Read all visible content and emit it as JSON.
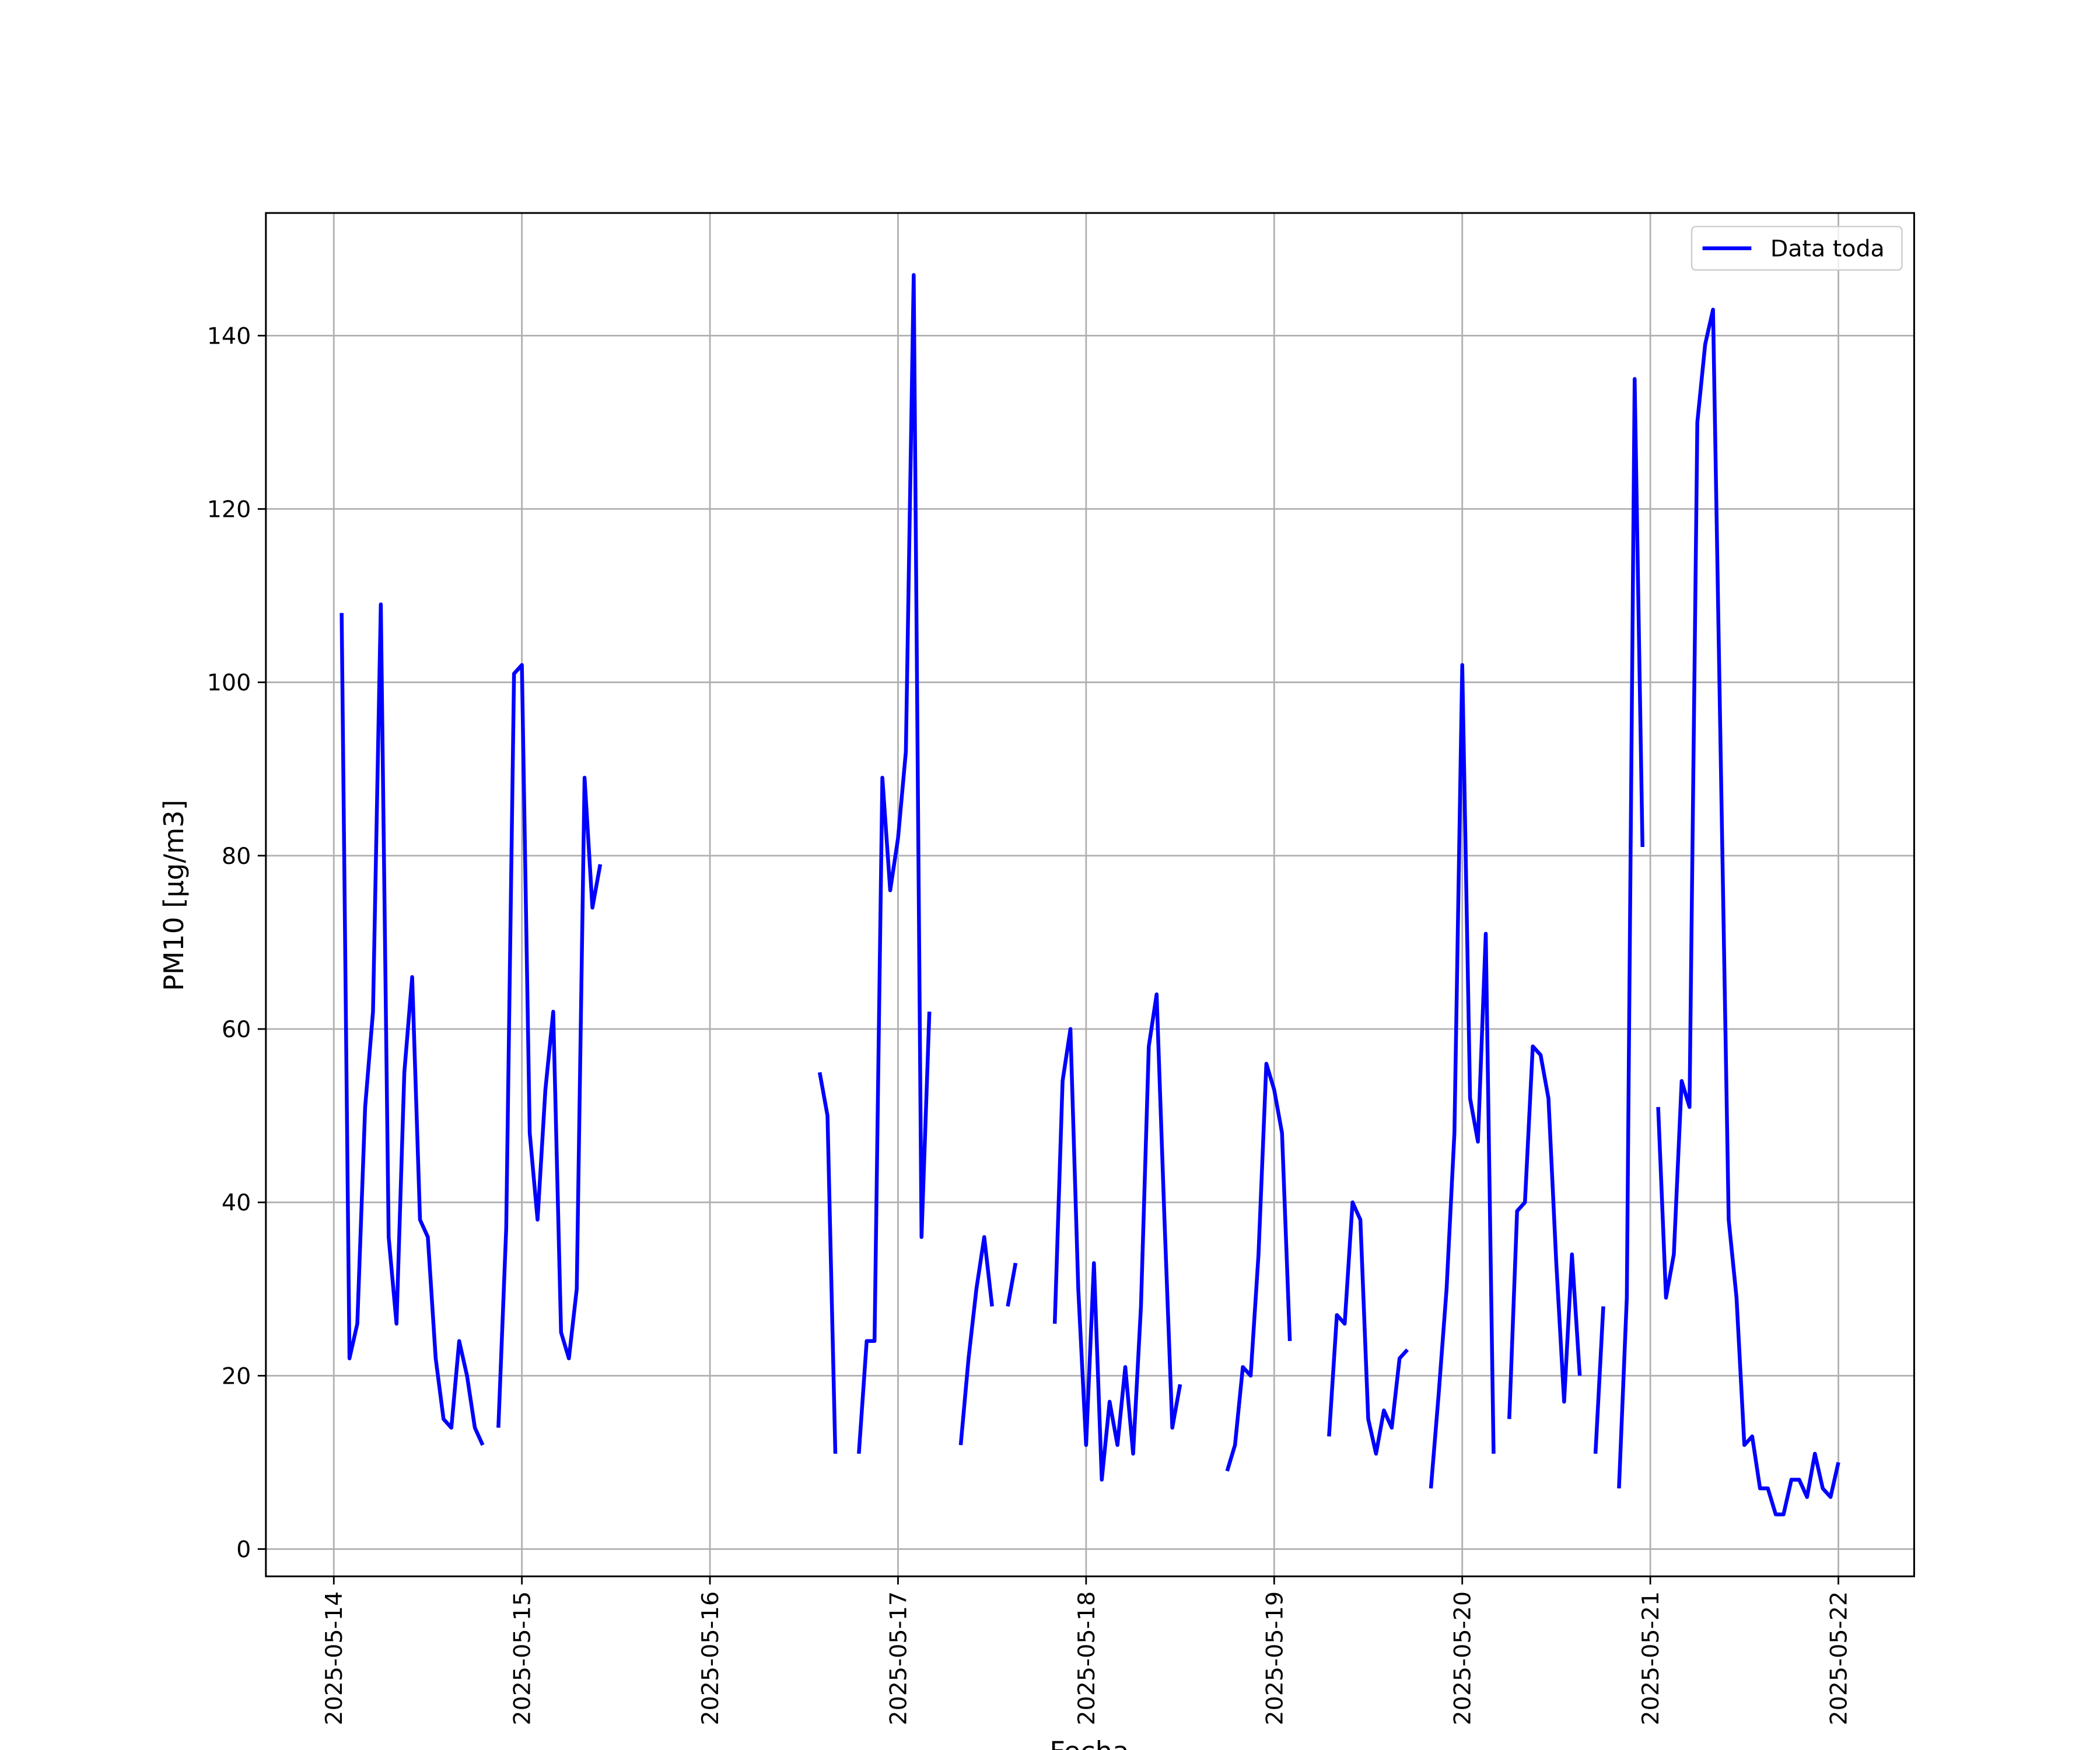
{
  "chart_data": {
    "type": "line",
    "xlabel": "Fecha",
    "ylabel": "PM10 [μg/m3]",
    "x": [
      "2025-05-14T01:00",
      "2025-05-14T02:00",
      "2025-05-14T03:00",
      "2025-05-14T04:00",
      "2025-05-14T05:00",
      "2025-05-14T06:00",
      "2025-05-14T07:00",
      "2025-05-14T08:00",
      "2025-05-14T09:00",
      "2025-05-14T10:00",
      "2025-05-14T11:00",
      "2025-05-14T12:00",
      "2025-05-14T13:00",
      "2025-05-14T14:00",
      "2025-05-14T15:00",
      "2025-05-14T16:00",
      "2025-05-14T17:00",
      "2025-05-14T18:00",
      "2025-05-14T19:00",
      "2025-05-14T20:00",
      "2025-05-14T21:00",
      "2025-05-14T22:00",
      "2025-05-14T23:00",
      "2025-05-15T00:00",
      "2025-05-15T01:00",
      "2025-05-15T02:00",
      "2025-05-15T03:00",
      "2025-05-15T04:00",
      "2025-05-15T05:00",
      "2025-05-15T06:00",
      "2025-05-15T07:00",
      "2025-05-15T08:00",
      "2025-05-15T09:00",
      "2025-05-15T10:00",
      "2025-05-15T11:00",
      "2025-05-16T14:00",
      "2025-05-16T15:00",
      "2025-05-16T16:00",
      "2025-05-16T17:00",
      "2025-05-16T19:00",
      "2025-05-16T20:00",
      "2025-05-16T21:00",
      "2025-05-16T22:00",
      "2025-05-16T23:00",
      "2025-05-17T00:00",
      "2025-05-17T01:00",
      "2025-05-17T02:00",
      "2025-05-17T03:00",
      "2025-05-17T04:00",
      "2025-05-17T05:00",
      "2025-05-17T08:00",
      "2025-05-17T09:00",
      "2025-05-17T10:00",
      "2025-05-17T11:00",
      "2025-05-17T12:00",
      "2025-05-17T13:00",
      "2025-05-17T14:00",
      "2025-05-17T15:00",
      "2025-05-17T16:00",
      "2025-05-17T20:00",
      "2025-05-17T21:00",
      "2025-05-17T22:00",
      "2025-05-17T23:00",
      "2025-05-18T00:00",
      "2025-05-18T01:00",
      "2025-05-18T02:00",
      "2025-05-18T03:00",
      "2025-05-18T04:00",
      "2025-05-18T05:00",
      "2025-05-18T06:00",
      "2025-05-18T07:00",
      "2025-05-18T08:00",
      "2025-05-18T09:00",
      "2025-05-18T10:00",
      "2025-05-18T11:00",
      "2025-05-18T12:00",
      "2025-05-18T13:00",
      "2025-05-18T18:00",
      "2025-05-18T19:00",
      "2025-05-18T20:00",
      "2025-05-18T21:00",
      "2025-05-18T22:00",
      "2025-05-18T23:00",
      "2025-05-19T00:00",
      "2025-05-19T01:00",
      "2025-05-19T02:00",
      "2025-05-19T03:00",
      "2025-05-19T07:00",
      "2025-05-19T08:00",
      "2025-05-19T09:00",
      "2025-05-19T10:00",
      "2025-05-19T11:00",
      "2025-05-19T12:00",
      "2025-05-19T13:00",
      "2025-05-19T14:00",
      "2025-05-19T15:00",
      "2025-05-19T16:00",
      "2025-05-19T17:00",
      "2025-05-19T18:00",
      "2025-05-19T20:00",
      "2025-05-19T21:00",
      "2025-05-19T22:00",
      "2025-05-19T23:00",
      "2025-05-20T00:00",
      "2025-05-20T01:00",
      "2025-05-20T02:00",
      "2025-05-20T03:00",
      "2025-05-20T04:00",
      "2025-05-20T05:00",
      "2025-05-20T06:00",
      "2025-05-20T07:00",
      "2025-05-20T08:00",
      "2025-05-20T09:00",
      "2025-05-20T10:00",
      "2025-05-20T11:00",
      "2025-05-20T12:00",
      "2025-05-20T13:00",
      "2025-05-20T14:00",
      "2025-05-20T15:00",
      "2025-05-20T16:00",
      "2025-05-20T17:00",
      "2025-05-20T18:00",
      "2025-05-20T19:00",
      "2025-05-20T20:00",
      "2025-05-20T21:00",
      "2025-05-20T22:00",
      "2025-05-20T23:00",
      "2025-05-21T00:00",
      "2025-05-21T01:00",
      "2025-05-21T02:00",
      "2025-05-21T03:00",
      "2025-05-21T04:00",
      "2025-05-21T05:00",
      "2025-05-21T06:00",
      "2025-05-21T07:00",
      "2025-05-21T08:00",
      "2025-05-21T10:00",
      "2025-05-21T11:00",
      "2025-05-21T12:00",
      "2025-05-21T13:00",
      "2025-05-21T14:00",
      "2025-05-21T15:00",
      "2025-05-21T16:00",
      "2025-05-21T17:00",
      "2025-05-21T18:00",
      "2025-05-21T19:00",
      "2025-05-21T20:00",
      "2025-05-21T21:00",
      "2025-05-21T22:00",
      "2025-05-21T23:00",
      "2025-05-22T00:00"
    ],
    "series": [
      {
        "name": "Data toda",
        "color": "#0000ff",
        "values": [
          108,
          22,
          26,
          51,
          62,
          109,
          36,
          26,
          55,
          66,
          38,
          36,
          22,
          15,
          14,
          24,
          20,
          14,
          12,
          null,
          14,
          37,
          101,
          102,
          48,
          38,
          53,
          62,
          25,
          22,
          30,
          89,
          74,
          79,
          null,
          55,
          50,
          11,
          null,
          11,
          24,
          24,
          89,
          76,
          82,
          92,
          147,
          36,
          62,
          null,
          12,
          22,
          30,
          36,
          28,
          null,
          28,
          33,
          null,
          26,
          54,
          60,
          30,
          12,
          33,
          8,
          17,
          12,
          21,
          11,
          28,
          58,
          64,
          38,
          14,
          19,
          null,
          9,
          12,
          21,
          20,
          34,
          56,
          53,
          48,
          24,
          null,
          13,
          27,
          26,
          40,
          38,
          15,
          11,
          16,
          14,
          22,
          23,
          null,
          7,
          18,
          30,
          48,
          102,
          52,
          47,
          71,
          11,
          null,
          15,
          39,
          40,
          58,
          57,
          52,
          33,
          17,
          34,
          20,
          null,
          11,
          28,
          null,
          7,
          29,
          135,
          81,
          null,
          51,
          29,
          34,
          54,
          51,
          130,
          139,
          143,
          38,
          29,
          12,
          13,
          7,
          7,
          4,
          4,
          8,
          8,
          6,
          11,
          7,
          6,
          10
        ]
      }
    ],
    "xlim": [
      "2025-05-13T15:20",
      "2025-05-22T09:40"
    ],
    "xticks": [
      "2025-05-14",
      "2025-05-15",
      "2025-05-16",
      "2025-05-17",
      "2025-05-18",
      "2025-05-19",
      "2025-05-20",
      "2025-05-21",
      "2025-05-22"
    ],
    "ylim": [
      -3.15,
      154.15
    ],
    "yticks": [
      0,
      20,
      40,
      60,
      80,
      100,
      120,
      140
    ],
    "grid": true,
    "legend": "upper right"
  }
}
